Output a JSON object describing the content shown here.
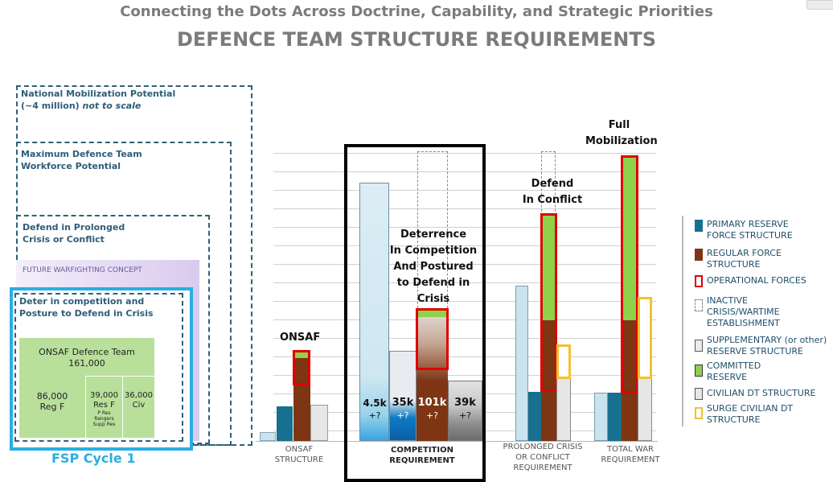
{
  "title": {
    "line1": "Connecting the Dots Across Doctrine, Capability, and Strategic Priorities",
    "line2": "DEFENCE TEAM STRUCTURE REQUIREMENTS"
  },
  "nested": {
    "national": [
      "National Mobilization Potential",
      "(~4 million)",
      "not to scale"
    ],
    "maximum": [
      "Maximum Defence Team",
      "Workforce Potential"
    ],
    "prolonged": [
      "Defend in Prolonged",
      "Crisis or Conflict"
    ],
    "future": "FUTURE WARFIGHTING CONCEPT",
    "deter": [
      "Deter in competition and",
      "Posture to Defend in Crisis"
    ],
    "onsaf_team": {
      "title": "ONSAF Defence Team",
      "total": "161,000"
    },
    "reg": {
      "value": "86,000",
      "label": "Reg F"
    },
    "res": {
      "value": "39,000",
      "label": "Res F",
      "sub": [
        "P Res",
        "Rangers",
        "Supp Res"
      ]
    },
    "civ": {
      "value": "36,000",
      "label": "Civ"
    },
    "fsp": "FSP Cycle 1"
  },
  "chart": {
    "annotations": {
      "onsaf": "ONSAF",
      "deterrence": [
        "Deterrence",
        "In Competition",
        "And Postured",
        "to Defend in",
        "Crisis"
      ],
      "defend": [
        "Defend",
        "In Conflict"
      ],
      "full": [
        "Full",
        "Mobilization"
      ]
    },
    "bar_labels": {
      "b1": [
        "4.5k",
        "+?"
      ],
      "b2": [
        "35k",
        "+?"
      ],
      "b3": [
        "101k",
        "+?"
      ],
      "b4": [
        "39k",
        "+?"
      ]
    },
    "categories": {
      "onsaf": [
        "ONSAF",
        "STRUCTURE"
      ],
      "competition": [
        "COMPETITION",
        "REQUIREMENT"
      ],
      "prolonged": [
        "PROLONGED CRISIS",
        "OR CONFLICT",
        "REQUIREMENT"
      ],
      "total": [
        "TOTAL WAR",
        "REQUIREMENT"
      ]
    }
  },
  "legend": [
    [
      "PRIMARY RESERVE",
      "FORCE STRUCTURE"
    ],
    [
      "REGULAR FORCE",
      "STRUCTURE"
    ],
    [
      "OPERATIONAL FORCES"
    ],
    [
      "INACTIVE",
      "CRISIS/WARTIME",
      "ESTABLISHMENT"
    ],
    [
      "SUPPLEMENTARY (or other)",
      "RESERVE STRUCTURE"
    ],
    [
      "COMMITTED",
      "RESERVE"
    ],
    [
      "CIVILIAN DT STRUCTURE"
    ],
    [
      "SURGE CIVILIAN DT",
      "STRUCTURE"
    ]
  ],
  "colors": {
    "primary_reserve": "#17708f",
    "regular_force": "#7e3513",
    "operational": "#e00000",
    "committed": "#8ed14a",
    "supplementary": "#e8ecf0",
    "civilian": "#e6e6e6",
    "surge_civilian": "#f2c12e",
    "light_blue": "#c9e3ef",
    "green_team": "#b9e09a",
    "fsp": "#2aaee2"
  }
}
